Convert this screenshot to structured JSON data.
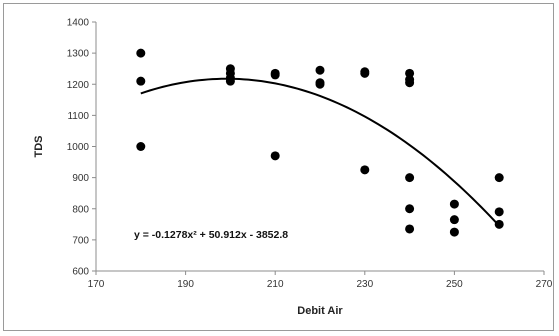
{
  "chart_data": {
    "type": "scatter",
    "title": "",
    "xlabel": "Debit Air",
    "ylabel": "TDS",
    "xlim": [
      170,
      270
    ],
    "ylim": [
      600,
      1400
    ],
    "x_ticks": [
      170,
      190,
      210,
      230,
      250,
      270
    ],
    "y_ticks": [
      600,
      700,
      800,
      900,
      1000,
      1100,
      1200,
      1300,
      1400
    ],
    "grid": false,
    "points": [
      {
        "x": 180,
        "y": 1300
      },
      {
        "x": 180,
        "y": 1210
      },
      {
        "x": 180,
        "y": 1000
      },
      {
        "x": 200,
        "y": 1250
      },
      {
        "x": 200,
        "y": 1235
      },
      {
        "x": 200,
        "y": 1220
      },
      {
        "x": 200,
        "y": 1210
      },
      {
        "x": 210,
        "y": 1235
      },
      {
        "x": 210,
        "y": 1230
      },
      {
        "x": 210,
        "y": 970
      },
      {
        "x": 220,
        "y": 1245
      },
      {
        "x": 220,
        "y": 1205
      },
      {
        "x": 220,
        "y": 1200
      },
      {
        "x": 230,
        "y": 1240
      },
      {
        "x": 230,
        "y": 1235
      },
      {
        "x": 230,
        "y": 925
      },
      {
        "x": 240,
        "y": 1235
      },
      {
        "x": 240,
        "y": 1215
      },
      {
        "x": 240,
        "y": 1205
      },
      {
        "x": 240,
        "y": 900
      },
      {
        "x": 240,
        "y": 800
      },
      {
        "x": 240,
        "y": 735
      },
      {
        "x": 250,
        "y": 815
      },
      {
        "x": 250,
        "y": 765
      },
      {
        "x": 250,
        "y": 725
      },
      {
        "x": 260,
        "y": 900
      },
      {
        "x": 260,
        "y": 790
      },
      {
        "x": 260,
        "y": 750
      }
    ],
    "trendline": {
      "type": "polynomial",
      "coefficients": [
        -0.1278,
        50.912,
        -3852.8
      ],
      "x_range": [
        180,
        260
      ],
      "equation_label": "y = -0.1278x² + 50.912x - 3852.8"
    },
    "colors": {
      "points": "#000000",
      "trendline": "#000000",
      "axis": "#8c8c8c"
    }
  }
}
